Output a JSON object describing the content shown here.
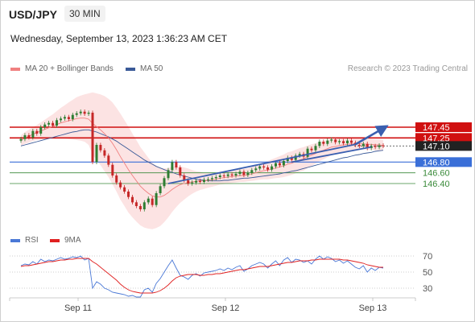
{
  "header": {
    "pair": "USD/JPY",
    "timeframe": "30 MIN",
    "datetime": "Wednesday, September 13, 2023 1:36:23 AM CET"
  },
  "legend": {
    "main": [
      {
        "label": "MA 20 + Bollinger Bands",
        "color": "#f08080"
      },
      {
        "label": "MA 50",
        "color": "#3a5a98"
      }
    ],
    "rsi": [
      {
        "label": "RSI",
        "color": "#4a78d6"
      },
      {
        "label": "9MA",
        "color": "#e02020"
      }
    ]
  },
  "credit": "Research © 2023 Trading Central",
  "colors": {
    "resistance": "#d01010",
    "current": "#222222",
    "pivot": "#3a6fd8",
    "support": "#3a8a3a",
    "band": "#fbd9d9",
    "ma20": "#f08080",
    "ma50": "#3a5a98",
    "candle_up": "#2e7d32",
    "candle_down": "#c62828",
    "trend": "#3a5fb0"
  },
  "chart_data": [
    {
      "type": "candlestick",
      "title": "USD/JPY 30 MIN",
      "x_ticks": [
        "Sep 11",
        "Sep 12",
        "Sep 13"
      ],
      "ylim": [
        145.8,
        147.75
      ],
      "levels": [
        {
          "value": 147.45,
          "label": "147.45",
          "kind": "resistance"
        },
        {
          "value": 147.25,
          "label": "147.25",
          "kind": "resistance"
        },
        {
          "value": 147.1,
          "label": "147.10",
          "kind": "current"
        },
        {
          "value": 146.8,
          "label": "146.80",
          "kind": "pivot"
        },
        {
          "value": 146.6,
          "label": "146.60",
          "kind": "support"
        },
        {
          "value": 146.4,
          "label": "146.40",
          "kind": "support"
        }
      ],
      "close": [
        147.23,
        147.3,
        147.26,
        147.38,
        147.33,
        147.45,
        147.5,
        147.53,
        147.48,
        147.58,
        147.61,
        147.64,
        147.6,
        147.68,
        147.71,
        147.74,
        147.7,
        147.72,
        146.8,
        147.12,
        147.02,
        146.92,
        146.75,
        146.55,
        146.42,
        146.33,
        146.25,
        146.15,
        146.05,
        145.98,
        145.92,
        146.05,
        146.12,
        146.0,
        146.22,
        146.35,
        146.5,
        146.65,
        146.8,
        146.7,
        146.55,
        146.46,
        146.4,
        146.42,
        146.45,
        146.43,
        146.47,
        146.48,
        146.5,
        146.52,
        146.55,
        146.54,
        146.57,
        146.55,
        146.58,
        146.62,
        146.56,
        146.6,
        146.65,
        146.68,
        146.72,
        146.7,
        146.66,
        146.72,
        146.78,
        146.74,
        146.82,
        146.88,
        146.84,
        146.92,
        146.95,
        146.9,
        147.05,
        147.02,
        147.1,
        147.18,
        147.14,
        147.2,
        147.22,
        147.17,
        147.19,
        147.15,
        147.2,
        147.16,
        147.12,
        147.1,
        147.14,
        147.06,
        147.1,
        147.08,
        147.11,
        147.1
      ],
      "ma20": [
        147.2,
        147.25,
        147.28,
        147.32,
        147.35,
        147.38,
        147.41,
        147.44,
        147.47,
        147.5,
        147.53,
        147.55,
        147.57,
        147.59,
        147.61,
        147.62,
        147.62,
        147.6,
        147.52,
        147.46,
        147.4,
        147.33,
        147.25,
        147.15,
        147.03,
        146.9,
        146.78,
        146.66,
        146.55,
        146.45,
        146.35,
        146.28,
        146.22,
        146.17,
        146.15,
        146.15,
        146.18,
        146.23,
        146.29,
        146.34,
        146.38,
        146.4,
        146.42,
        146.43,
        146.44,
        146.45,
        146.45,
        146.46,
        146.47,
        146.48,
        146.5,
        146.51,
        146.52,
        146.53,
        146.54,
        146.55,
        146.55,
        146.56,
        146.58,
        146.6,
        146.62,
        146.64,
        146.65,
        146.67,
        146.69,
        146.71,
        146.73,
        146.76,
        146.78,
        146.81,
        146.84,
        146.86,
        146.9,
        146.93,
        146.96,
        147.0,
        147.02,
        147.05,
        147.08,
        147.09,
        147.11,
        147.12,
        147.13,
        147.14,
        147.14,
        147.14,
        147.14,
        147.13,
        147.13,
        147.12,
        147.12,
        147.11
      ],
      "ma50": [
        147.1,
        147.12,
        147.14,
        147.16,
        147.18,
        147.2,
        147.22,
        147.24,
        147.26,
        147.28,
        147.3,
        147.32,
        147.34,
        147.36,
        147.37,
        147.39,
        147.4,
        147.4,
        147.38,
        147.36,
        147.33,
        147.3,
        147.27,
        147.23,
        147.19,
        147.14,
        147.09,
        147.04,
        146.99,
        146.94,
        146.89,
        146.84,
        146.8,
        146.76,
        146.72,
        146.69,
        146.66,
        146.63,
        146.61,
        146.58,
        146.56,
        146.54,
        146.52,
        146.5,
        146.48,
        146.47,
        146.46,
        146.45,
        146.45,
        146.45,
        146.45,
        146.46,
        146.46,
        146.47,
        146.48,
        146.49,
        146.5,
        146.5,
        146.51,
        146.52,
        146.53,
        146.54,
        146.55,
        146.56,
        146.57,
        146.58,
        146.6,
        146.61,
        146.63,
        146.64,
        146.66,
        146.68,
        146.7,
        146.72,
        146.74,
        146.76,
        146.78,
        146.8,
        146.82,
        146.84,
        146.86,
        146.88,
        146.89,
        146.91,
        146.93,
        146.94,
        146.96,
        146.97,
        146.98,
        147.0,
        147.01,
        147.02
      ],
      "bb_width": [
        0.1,
        0.11,
        0.12,
        0.13,
        0.14,
        0.16,
        0.18,
        0.2,
        0.22,
        0.25,
        0.28,
        0.31,
        0.34,
        0.37,
        0.4,
        0.42,
        0.44,
        0.48,
        0.58,
        0.62,
        0.66,
        0.7,
        0.73,
        0.76,
        0.78,
        0.8,
        0.8,
        0.8,
        0.78,
        0.76,
        0.73,
        0.7,
        0.66,
        0.62,
        0.58,
        0.54,
        0.5,
        0.46,
        0.42,
        0.38,
        0.34,
        0.3,
        0.26,
        0.22,
        0.19,
        0.17,
        0.15,
        0.14,
        0.13,
        0.12,
        0.12,
        0.12,
        0.12,
        0.12,
        0.12,
        0.12,
        0.12,
        0.12,
        0.13,
        0.14,
        0.15,
        0.16,
        0.17,
        0.18,
        0.19,
        0.2,
        0.21,
        0.22,
        0.22,
        0.22,
        0.22,
        0.22,
        0.21,
        0.2,
        0.19,
        0.18,
        0.17,
        0.16,
        0.15,
        0.14,
        0.13,
        0.12,
        0.12,
        0.11,
        0.11,
        0.1,
        0.1,
        0.1,
        0.1,
        0.1,
        0.1,
        0.1
      ],
      "trendlines": [
        {
          "from": [
            37,
            146.4
          ],
          "to": [
            84,
            147.13
          ],
          "arrow": false
        },
        {
          "from": [
            84,
            147.13
          ],
          "to": [
            91,
            147.43
          ],
          "arrow": true
        },
        {
          "from": [
            68,
            146.8
          ],
          "to": [
            88,
            147.08
          ],
          "arrow": false
        }
      ]
    },
    {
      "type": "line",
      "title": "RSI",
      "ylim": [
        20,
        80
      ],
      "y_ticks": [
        70,
        50,
        30
      ],
      "series": [
        {
          "name": "RSI",
          "values": [
            58,
            60,
            59,
            63,
            60,
            66,
            63,
            65,
            64,
            66,
            68,
            66,
            67,
            69,
            68,
            70,
            65,
            67,
            30,
            38,
            35,
            30,
            28,
            25,
            24,
            23,
            22,
            20,
            21,
            19,
            19,
            28,
            30,
            25,
            36,
            42,
            50,
            58,
            65,
            55,
            46,
            44,
            41,
            46,
            48,
            45,
            49,
            50,
            51,
            52,
            54,
            52,
            55,
            53,
            56,
            58,
            51,
            54,
            58,
            60,
            62,
            60,
            55,
            60,
            64,
            58,
            65,
            68,
            62,
            66,
            65,
            62,
            64,
            60,
            66,
            70,
            66,
            69,
            67,
            63,
            65,
            61,
            64,
            60,
            56,
            54,
            58,
            50,
            55,
            52,
            56,
            55
          ]
        },
        {
          "name": "9MA",
          "values": [
            57,
            58,
            58,
            59,
            60,
            61,
            62,
            63,
            63,
            64,
            65,
            65,
            66,
            66,
            67,
            67,
            67,
            67,
            63,
            60,
            56,
            52,
            48,
            44,
            40,
            35,
            31,
            28,
            26,
            25,
            24,
            24,
            24,
            24,
            25,
            27,
            30,
            34,
            39,
            43,
            45,
            46,
            47,
            47,
            47,
            46,
            46,
            47,
            47,
            48,
            48,
            49,
            50,
            51,
            52,
            53,
            53,
            54,
            55,
            56,
            57,
            57,
            57,
            58,
            59,
            60,
            61,
            62,
            62,
            63,
            64,
            64,
            64,
            65,
            65,
            66,
            66,
            66,
            66,
            66,
            66,
            65,
            65,
            64,
            63,
            62,
            61,
            59,
            58,
            57,
            56,
            56
          ]
        }
      ]
    }
  ]
}
